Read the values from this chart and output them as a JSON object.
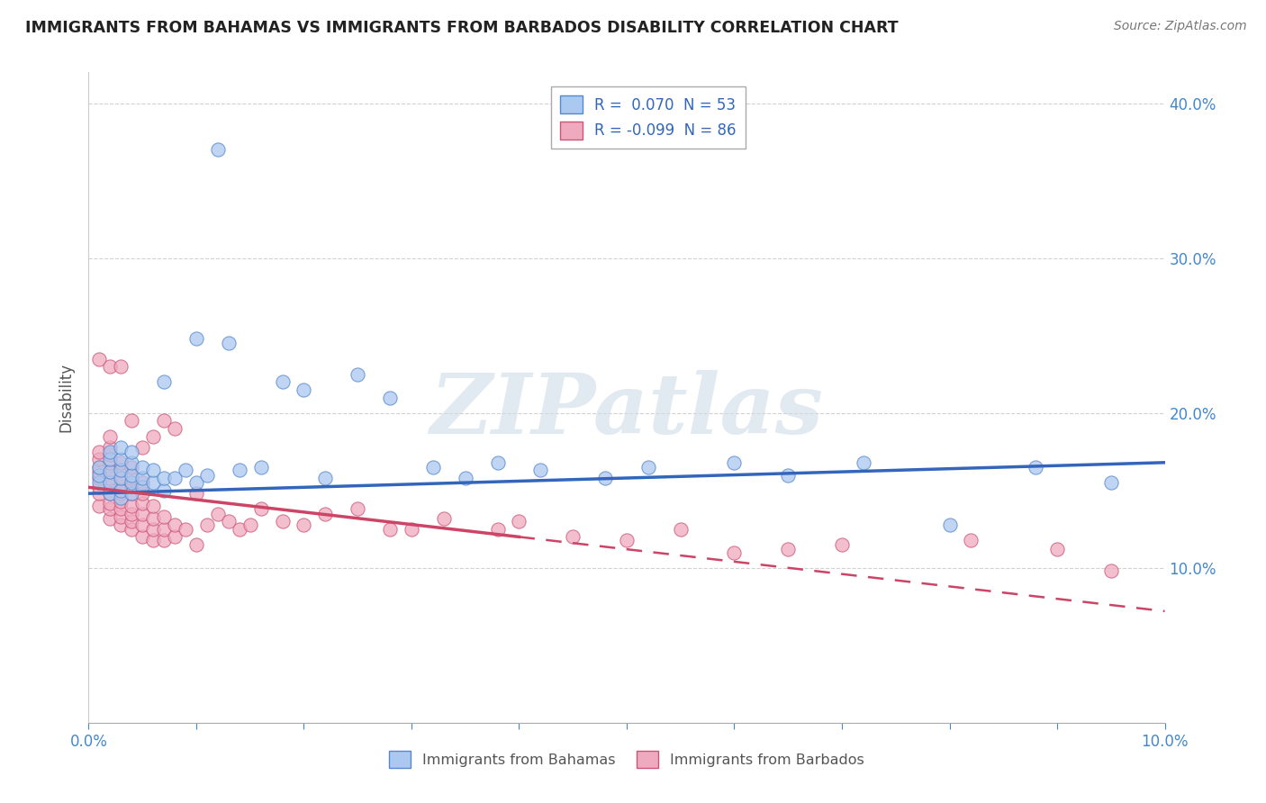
{
  "title": "IMMIGRANTS FROM BAHAMAS VS IMMIGRANTS FROM BARBADOS DISABILITY CORRELATION CHART",
  "source_text": "Source: ZipAtlas.com",
  "ylabel": "Disability",
  "xlim": [
    0.0,
    0.1
  ],
  "ylim": [
    0.0,
    0.42
  ],
  "xticks": [
    0.0,
    0.01,
    0.02,
    0.03,
    0.04,
    0.05,
    0.06,
    0.07,
    0.08,
    0.09,
    0.1
  ],
  "yticks": [
    0.0,
    0.1,
    0.2,
    0.3,
    0.4
  ],
  "ytick_labels": [
    "",
    "10.0%",
    "20.0%",
    "30.0%",
    "40.0%"
  ],
  "xtick_labels": [
    "0.0%",
    "",
    "",
    "",
    "",
    "",
    "",
    "",
    "",
    "",
    "10.0%"
  ],
  "bahamas_color": "#aac8f0",
  "barbados_color": "#f0aac0",
  "bahamas_edge_color": "#5588cc",
  "barbados_edge_color": "#cc5577",
  "bahamas_line_color": "#3366bb",
  "barbados_line_color": "#cc4466",
  "background_color": "#ffffff",
  "grid_color": "#cccccc",
  "watermark": "ZIPatlas",
  "bahamas_trend_x0": 0.0,
  "bahamas_trend_y0": 0.148,
  "bahamas_trend_x1": 0.1,
  "bahamas_trend_y1": 0.168,
  "barbados_trend_x0": 0.0,
  "barbados_trend_y0": 0.152,
  "barbados_trend_x1": 0.1,
  "barbados_trend_y1": 0.072,
  "bahamas_scatter_x": [
    0.001,
    0.001,
    0.001,
    0.002,
    0.002,
    0.002,
    0.002,
    0.002,
    0.003,
    0.003,
    0.003,
    0.003,
    0.003,
    0.003,
    0.004,
    0.004,
    0.004,
    0.004,
    0.004,
    0.005,
    0.005,
    0.005,
    0.006,
    0.006,
    0.007,
    0.007,
    0.007,
    0.008,
    0.009,
    0.01,
    0.01,
    0.011,
    0.012,
    0.013,
    0.014,
    0.016,
    0.018,
    0.02,
    0.022,
    0.025,
    0.028,
    0.032,
    0.035,
    0.038,
    0.042,
    0.048,
    0.052,
    0.06,
    0.065,
    0.072,
    0.08,
    0.088,
    0.095
  ],
  "bahamas_scatter_y": [
    0.155,
    0.16,
    0.165,
    0.148,
    0.155,
    0.162,
    0.17,
    0.175,
    0.145,
    0.15,
    0.158,
    0.163,
    0.17,
    0.178,
    0.148,
    0.155,
    0.16,
    0.168,
    0.175,
    0.152,
    0.158,
    0.165,
    0.155,
    0.163,
    0.15,
    0.158,
    0.22,
    0.158,
    0.163,
    0.155,
    0.248,
    0.16,
    0.37,
    0.245,
    0.163,
    0.165,
    0.22,
    0.215,
    0.158,
    0.225,
    0.21,
    0.165,
    0.158,
    0.168,
    0.163,
    0.158,
    0.165,
    0.168,
    0.16,
    0.168,
    0.128,
    0.165,
    0.155
  ],
  "barbados_scatter_x": [
    0.001,
    0.001,
    0.001,
    0.001,
    0.001,
    0.001,
    0.001,
    0.001,
    0.001,
    0.002,
    0.002,
    0.002,
    0.002,
    0.002,
    0.002,
    0.002,
    0.002,
    0.002,
    0.002,
    0.002,
    0.002,
    0.003,
    0.003,
    0.003,
    0.003,
    0.003,
    0.003,
    0.003,
    0.003,
    0.003,
    0.003,
    0.004,
    0.004,
    0.004,
    0.004,
    0.004,
    0.004,
    0.004,
    0.004,
    0.004,
    0.005,
    0.005,
    0.005,
    0.005,
    0.005,
    0.005,
    0.005,
    0.006,
    0.006,
    0.006,
    0.006,
    0.006,
    0.007,
    0.007,
    0.007,
    0.007,
    0.008,
    0.008,
    0.008,
    0.009,
    0.01,
    0.01,
    0.011,
    0.012,
    0.013,
    0.014,
    0.015,
    0.016,
    0.018,
    0.02,
    0.022,
    0.025,
    0.028,
    0.03,
    0.033,
    0.038,
    0.04,
    0.045,
    0.05,
    0.055,
    0.06,
    0.065,
    0.07,
    0.082,
    0.09,
    0.095
  ],
  "barbados_scatter_y": [
    0.14,
    0.148,
    0.152,
    0.158,
    0.162,
    0.165,
    0.17,
    0.175,
    0.235,
    0.132,
    0.138,
    0.142,
    0.148,
    0.153,
    0.158,
    0.162,
    0.168,
    0.173,
    0.178,
    0.185,
    0.23,
    0.128,
    0.133,
    0.138,
    0.143,
    0.148,
    0.153,
    0.158,
    0.163,
    0.168,
    0.23,
    0.125,
    0.13,
    0.135,
    0.14,
    0.148,
    0.153,
    0.158,
    0.165,
    0.195,
    0.12,
    0.128,
    0.135,
    0.142,
    0.148,
    0.155,
    0.178,
    0.118,
    0.125,
    0.132,
    0.14,
    0.185,
    0.118,
    0.125,
    0.133,
    0.195,
    0.12,
    0.128,
    0.19,
    0.125,
    0.115,
    0.148,
    0.128,
    0.135,
    0.13,
    0.125,
    0.128,
    0.138,
    0.13,
    0.128,
    0.135,
    0.138,
    0.125,
    0.125,
    0.132,
    0.125,
    0.13,
    0.12,
    0.118,
    0.125,
    0.11,
    0.112,
    0.115,
    0.118,
    0.112,
    0.098
  ]
}
